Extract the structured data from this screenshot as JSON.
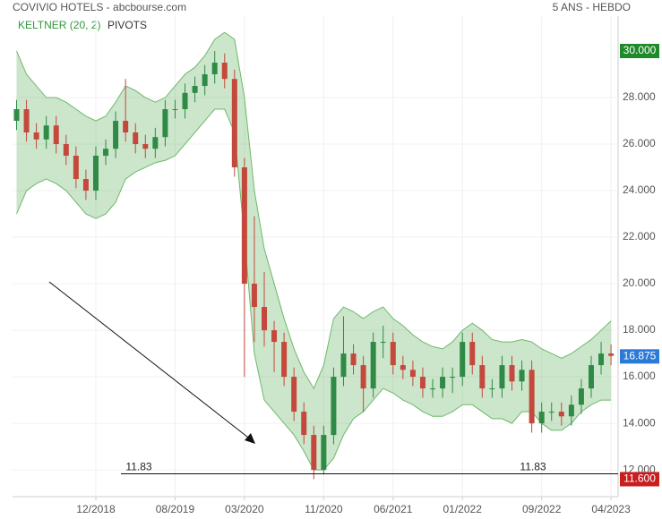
{
  "chart_data": {
    "type": "candlestick",
    "title": "COVIVIO HOTELS - abcbourse.com",
    "subtitle": "5 ANS - HEBDO",
    "legend": [
      "KELTNER (20, 2)",
      "PIVOTS"
    ],
    "categories": [
      null,
      null,
      null,
      null,
      null,
      null,
      null,
      null,
      "12/2018",
      null,
      null,
      null,
      null,
      null,
      null,
      null,
      "08/2019",
      null,
      null,
      null,
      null,
      null,
      null,
      "03/2020",
      null,
      null,
      null,
      null,
      null,
      null,
      null,
      "11/2020",
      null,
      null,
      null,
      null,
      null,
      null,
      "06/2021",
      null,
      null,
      null,
      null,
      null,
      null,
      "01/2022",
      null,
      null,
      null,
      null,
      null,
      null,
      null,
      "09/2022",
      null,
      null,
      null,
      null,
      null,
      null,
      "04/2023"
    ],
    "open": [
      27.0,
      27.5,
      26.5,
      26.2,
      26.8,
      26.0,
      25.5,
      24.5,
      24.0,
      25.5,
      25.8,
      27.0,
      26.5,
      26.0,
      25.8,
      26.3,
      27.5,
      27.5,
      28.2,
      28.5,
      29.0,
      29.5,
      28.8,
      25.0,
      20.0,
      19.0,
      18.0,
      17.5,
      16.0,
      14.5,
      13.5,
      12.0,
      13.5,
      16.0,
      17.0,
      16.5,
      15.5,
      17.5,
      17.5,
      16.5,
      16.3,
      16.0,
      15.5,
      15.5,
      16.0,
      16.0,
      17.5,
      16.5,
      15.5,
      15.5,
      16.5,
      15.8,
      16.3,
      14.0,
      14.5,
      14.5,
      14.3,
      14.8,
      15.5,
      16.5,
      17.0
    ],
    "high": [
      27.9,
      27.9,
      26.9,
      27.2,
      27.2,
      26.4,
      25.9,
      24.9,
      25.9,
      26.2,
      27.4,
      28.8,
      26.9,
      26.4,
      26.7,
      27.9,
      27.9,
      28.6,
      28.9,
      29.4,
      30.0,
      29.9,
      29.2,
      25.4,
      22.9,
      20.5,
      18.4,
      17.9,
      16.4,
      14.9,
      13.9,
      13.9,
      16.4,
      18.6,
      17.4,
      16.9,
      17.9,
      18.2,
      17.9,
      16.9,
      16.7,
      16.4,
      15.9,
      16.4,
      16.4,
      17.9,
      17.9,
      16.9,
      15.9,
      16.9,
      16.9,
      16.7,
      16.7,
      14.9,
      14.9,
      14.9,
      15.2,
      15.9,
      16.9,
      17.5,
      17.4
    ],
    "low": [
      26.6,
      26.1,
      25.8,
      25.8,
      25.6,
      25.1,
      24.1,
      23.6,
      23.6,
      25.1,
      25.4,
      26.1,
      25.6,
      25.4,
      25.4,
      25.9,
      27.1,
      27.1,
      27.8,
      28.1,
      28.6,
      28.4,
      24.6,
      16.0,
      17.5,
      17.3,
      16.2,
      15.6,
      14.1,
      13.1,
      11.6,
      11.8,
      13.1,
      15.6,
      16.1,
      14.5,
      15.1,
      16.8,
      16.1,
      15.9,
      15.6,
      15.1,
      15.1,
      15.1,
      15.3,
      15.6,
      16.1,
      15.1,
      15.1,
      15.1,
      15.4,
      15.4,
      13.6,
      13.6,
      14.1,
      13.9,
      13.9,
      14.4,
      15.1,
      16.1,
      16.5
    ],
    "close": [
      27.5,
      26.5,
      26.2,
      26.8,
      26.0,
      25.5,
      24.5,
      24.0,
      25.5,
      25.8,
      27.0,
      26.5,
      26.0,
      25.8,
      26.3,
      27.5,
      27.5,
      28.2,
      28.5,
      29.0,
      29.5,
      28.8,
      25.0,
      20.0,
      19.0,
      18.0,
      17.5,
      16.0,
      14.5,
      13.5,
      12.0,
      13.5,
      16.0,
      17.0,
      16.5,
      15.5,
      17.5,
      17.5,
      16.5,
      16.3,
      16.0,
      15.5,
      15.5,
      16.0,
      16.0,
      17.5,
      16.5,
      15.5,
      15.5,
      16.5,
      15.8,
      16.3,
      14.0,
      14.5,
      14.5,
      14.3,
      14.8,
      15.5,
      16.5,
      17.0,
      16.9
    ],
    "keltner_upper": [
      30.0,
      29.0,
      28.5,
      28.0,
      28.0,
      27.8,
      27.5,
      27.2,
      27.0,
      27.2,
      27.8,
      28.5,
      28.3,
      28.0,
      27.8,
      28.0,
      28.5,
      29.0,
      29.3,
      29.8,
      30.5,
      30.8,
      30.5,
      28.0,
      24.0,
      21.5,
      20.0,
      18.5,
      17.2,
      16.2,
      15.5,
      16.5,
      18.5,
      19.0,
      18.8,
      18.5,
      18.8,
      19.0,
      18.5,
      18.2,
      17.8,
      17.5,
      17.3,
      17.2,
      17.5,
      18.0,
      18.3,
      18.0,
      17.6,
      17.5,
      17.5,
      17.6,
      17.5,
      17.2,
      17.0,
      16.8,
      17.0,
      17.3,
      17.6,
      18.0,
      18.4
    ],
    "keltner_lower": [
      23.0,
      24.0,
      24.3,
      24.5,
      24.3,
      24.0,
      23.5,
      23.0,
      22.8,
      23.0,
      23.5,
      24.5,
      24.8,
      25.0,
      25.2,
      25.3,
      25.5,
      26.0,
      26.5,
      27.0,
      27.5,
      27.5,
      26.5,
      22.0,
      17.0,
      15.0,
      14.5,
      14.0,
      13.5,
      12.8,
      12.0,
      12.0,
      12.5,
      13.5,
      14.2,
      14.5,
      15.0,
      15.5,
      15.3,
      15.0,
      14.8,
      14.5,
      14.3,
      14.3,
      14.5,
      14.8,
      14.8,
      14.5,
      14.2,
      14.2,
      14.0,
      14.5,
      14.5,
      14.0,
      13.7,
      13.7,
      14.0,
      14.5,
      14.8,
      15.0,
      15.0
    ],
    "up_color": "#2f8a45",
    "down_color": "#c4483c",
    "channel_color": "#6cb86a",
    "pivot": {
      "value": 11.83,
      "label": "11.83"
    },
    "badges": [
      {
        "value": 30.0,
        "label": "30.000",
        "color": "#1f8a2a"
      },
      {
        "value": 16.875,
        "label": "16.875",
        "color": "#2a7ad8"
      },
      {
        "value": 11.6,
        "label": "11.600",
        "color": "#c81e1e"
      }
    ],
    "ylim": [
      10.85,
      31.5
    ],
    "yticks": [
      {
        "value": 12,
        "label": "12.000"
      },
      {
        "value": 14,
        "label": "14.000"
      },
      {
        "value": 16,
        "label": "16.000"
      },
      {
        "value": 18,
        "label": "18.000"
      },
      {
        "value": 20,
        "label": "20.000"
      },
      {
        "value": 22,
        "label": "22.000"
      },
      {
        "value": 24,
        "label": "24.000"
      },
      {
        "value": 26,
        "label": "26.000"
      },
      {
        "value": 28,
        "label": "28.000"
      }
    ],
    "grid": true
  }
}
